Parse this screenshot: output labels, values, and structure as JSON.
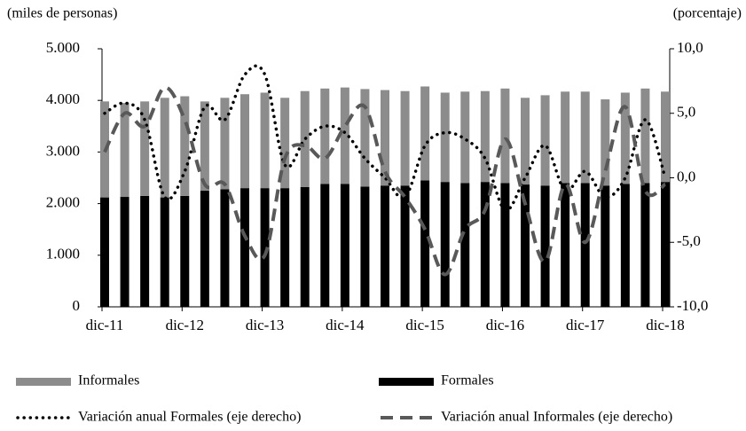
{
  "chart_data": {
    "type": "bar",
    "y_label": "(miles de personas)",
    "y2_label": "(porcentaje)",
    "categories": [
      "dic-11",
      null,
      null,
      null,
      "dic-12",
      null,
      null,
      null,
      "dic-13",
      null,
      null,
      null,
      "dic-14",
      null,
      null,
      null,
      "dic-15",
      null,
      null,
      null,
      "dic-16",
      null,
      null,
      null,
      "dic-17",
      null,
      null,
      null,
      "dic-18"
    ],
    "ylim": [
      0,
      5000
    ],
    "yticks": [
      0,
      {
        "value": 1000,
        "label": "1.000"
      },
      {
        "value": 2000,
        "label": "2.000"
      },
      {
        "value": 3000,
        "label": "3.000"
      },
      {
        "value": 4000,
        "label": "4.000"
      },
      {
        "value": 5000,
        "label": "5.000"
      }
    ],
    "y2lim": [
      -10,
      10
    ],
    "y2ticks": [
      {
        "value": -10,
        "label": "-10,0"
      },
      {
        "value": -5,
        "label": "-5,0"
      },
      {
        "value": 0,
        "label": "0,0"
      },
      {
        "value": 5,
        "label": "5,0"
      },
      {
        "value": 10,
        "label": "10,0"
      }
    ],
    "stacked": true,
    "series": [
      {
        "name": "Formales",
        "type": "bar",
        "color": "#000000",
        "values": [
          2120,
          2130,
          2150,
          2120,
          2150,
          2250,
          2280,
          2300,
          2300,
          2300,
          2320,
          2380,
          2380,
          2330,
          2350,
          2350,
          2450,
          2420,
          2400,
          2420,
          2400,
          2370,
          2350,
          2400,
          2400,
          2350,
          2380,
          2400,
          2420
        ]
      },
      {
        "name": "Informales",
        "type": "bar",
        "color": "#8c8c8c",
        "values": [
          1860,
          1820,
          1830,
          1930,
          1930,
          1730,
          1770,
          1820,
          1850,
          1750,
          1860,
          1850,
          1870,
          1890,
          1850,
          1830,
          1820,
          1730,
          1770,
          1760,
          1830,
          1680,
          1750,
          1770,
          1770,
          1670,
          1770,
          1830,
          1750
        ]
      },
      {
        "name": "Variación anual Formales (eje derecho)",
        "type": "line",
        "axis": "y2",
        "color": "#000000",
        "line_style": "dotted",
        "values": [
          5.0,
          5.8,
          4.5,
          -1.5,
          0.5,
          5.5,
          4.5,
          8.0,
          8.0,
          1.0,
          3.0,
          4.0,
          3.5,
          1.5,
          0.0,
          -1.5,
          2.5,
          3.5,
          3.0,
          1.5,
          -2.5,
          0.0,
          2.5,
          -1.0,
          0.5,
          -1.5,
          0.0,
          4.5,
          0.0
        ]
      },
      {
        "name": "Variación anual Informales (eje derecho)",
        "type": "line",
        "axis": "y2",
        "color": "#595959",
        "line_style": "dashed",
        "values": [
          2.0,
          5.0,
          4.0,
          7.0,
          4.5,
          -0.5,
          -0.5,
          -4.5,
          -6.0,
          1.5,
          2.5,
          1.5,
          4.0,
          5.5,
          0.5,
          -1.5,
          -4.0,
          -7.5,
          -4.0,
          -2.5,
          3.0,
          -2.0,
          -6.5,
          -0.5,
          -5.0,
          0.5,
          5.5,
          -1.0,
          -0.5
        ]
      }
    ]
  }
}
